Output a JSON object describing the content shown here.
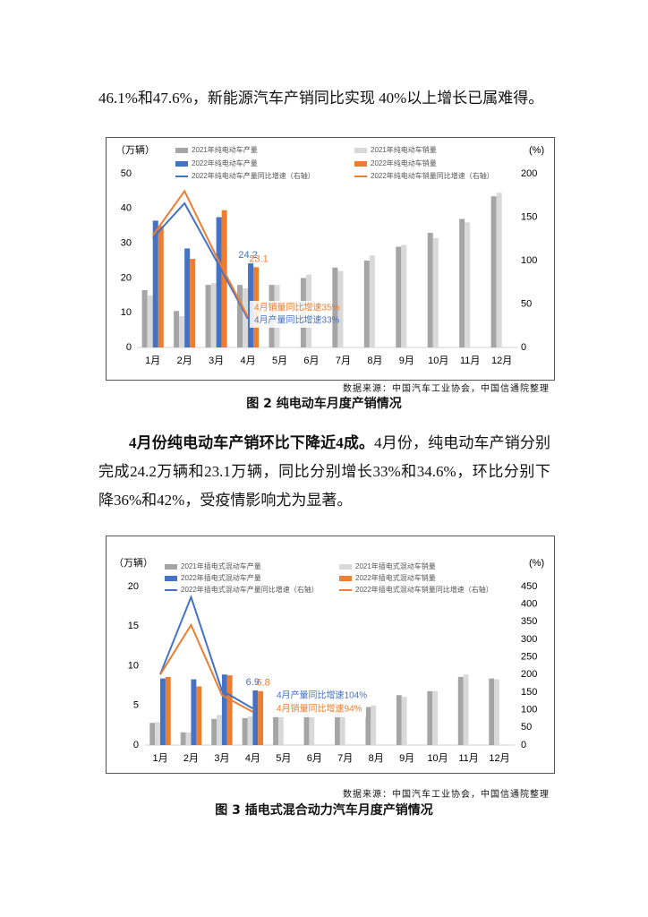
{
  "intro": "46.1%和47.6%，新能源汽车产销同比实现 40%以上增长已属难得。",
  "paragraph": {
    "lead": "4月份纯电动车产销环比下降近4成。",
    "body": "4月份，纯电动车产销分别完成24.2万辆和23.1万辆，同比分别增长33%和34.6%，环比分别下降36%和42%，受疫情影响尤为显著。"
  },
  "chart_data": [
    {
      "type": "bar",
      "y_label": "（万辆）",
      "y2_label": "(%)",
      "categories": [
        "1月",
        "2月",
        "3月",
        "4月",
        "5月",
        "6月",
        "7月",
        "8月",
        "9月",
        "10月",
        "11月",
        "12月"
      ],
      "ylim": [
        0,
        50
      ],
      "yticks": [
        0,
        10,
        20,
        30,
        40,
        50
      ],
      "y2lim": [
        0,
        200
      ],
      "y2ticks": [
        0,
        50,
        100,
        150,
        200
      ],
      "series": [
        {
          "name": "2021年纯电动车产量",
          "type": "bar",
          "color": "#a5a5a5",
          "values": [
            16.5,
            10.5,
            18,
            18,
            18,
            20,
            23,
            25,
            29,
            33,
            37,
            43.5
          ]
        },
        {
          "name": "2021年纯电动车销量",
          "type": "bar",
          "color": "#d9d9d9",
          "values": [
            15,
            9,
            18.5,
            17,
            18,
            21,
            22,
            26.5,
            29.5,
            31.5,
            36,
            44.5
          ]
        },
        {
          "name": "2022年纯电动车产量",
          "type": "bar",
          "color": "#4472c4",
          "values": [
            36.5,
            28.5,
            37.5,
            24.2,
            null,
            null,
            null,
            null,
            null,
            null,
            null,
            null
          ],
          "value_labels": [
            null,
            null,
            null,
            "24.2",
            null,
            null,
            null,
            null,
            null,
            null,
            null,
            null
          ]
        },
        {
          "name": "2022年纯电动车销量",
          "type": "bar",
          "color": "#ed7d31",
          "values": [
            35,
            25.5,
            39.5,
            23.1,
            null,
            null,
            null,
            null,
            null,
            null,
            null,
            null
          ],
          "value_labels": [
            null,
            null,
            null,
            "23.1",
            null,
            null,
            null,
            null,
            null,
            null,
            null,
            null
          ]
        },
        {
          "name": "2022年纯电动车产量同比增速（右轴）",
          "type": "line",
          "axis": "y2",
          "color": "#4472c4",
          "values": [
            126,
            166,
            100,
            33,
            null,
            null,
            null,
            null,
            null,
            null,
            null,
            null
          ]
        },
        {
          "name": "2022年纯电动车销量同比增速（右轴）",
          "type": "line",
          "axis": "y2",
          "color": "#ed7d31",
          "values": [
            129,
            180,
            105,
            35,
            null,
            null,
            null,
            null,
            null,
            null,
            null,
            null
          ]
        }
      ],
      "annotations": [
        {
          "text": "4月销量同比增速35%",
          "color": "#ed7d31"
        },
        {
          "text": "4月产量同比增速33%",
          "color": "#4472c4"
        }
      ],
      "source": "数据来源：中国汽车工业协会，中国信通院整理",
      "caption": "图 2   纯电动车月度产销情况"
    },
    {
      "type": "bar",
      "y_label": "（万辆）",
      "y2_label": "(%)",
      "categories": [
        "1月",
        "2月",
        "3月",
        "4月",
        "5月",
        "6月",
        "7月",
        "8月",
        "9月",
        "10月",
        "11月",
        "12月"
      ],
      "ylim": [
        0,
        20
      ],
      "yticks": [
        0,
        5,
        10,
        15,
        20
      ],
      "y2lim": [
        0,
        450
      ],
      "y2ticks": [
        0,
        50,
        100,
        150,
        200,
        250,
        300,
        350,
        400,
        450
      ],
      "series": [
        {
          "name": "2021年插电式混动车产量",
          "type": "bar",
          "color": "#a5a5a5",
          "values": [
            2.8,
            1.6,
            3.3,
            3.4,
            3.7,
            4.0,
            4.3,
            4.8,
            6.3,
            6.8,
            8.6,
            8.4
          ]
        },
        {
          "name": "2021年插电式混动车销量",
          "type": "bar",
          "color": "#d9d9d9",
          "values": [
            2.9,
            1.6,
            3.8,
            3.6,
            3.7,
            4.1,
            4.3,
            5.0,
            6.1,
            6.8,
            8.9,
            8.3
          ]
        },
        {
          "name": "2022年插电式混动车产量",
          "type": "bar",
          "color": "#4472c4",
          "values": [
            8.4,
            8.3,
            8.9,
            6.9,
            null,
            null,
            null,
            null,
            null,
            null,
            null,
            null
          ],
          "value_labels": [
            null,
            null,
            null,
            "6.9",
            null,
            null,
            null,
            null,
            null,
            null,
            null,
            null
          ]
        },
        {
          "name": "2022年插电式混动车销量",
          "type": "bar",
          "color": "#ed7d31",
          "values": [
            8.6,
            7.4,
            8.8,
            6.8,
            null,
            null,
            null,
            null,
            null,
            null,
            null,
            null
          ],
          "value_labels": [
            null,
            null,
            null,
            "6.8",
            null,
            null,
            null,
            null,
            null,
            null,
            null,
            null
          ]
        },
        {
          "name": "2022年插电式混动车产量同比增速（右轴）",
          "type": "line",
          "axis": "y2",
          "color": "#4472c4",
          "values": [
            201,
            420,
            155,
            104,
            null,
            null,
            null,
            null,
            null,
            null,
            null,
            null
          ]
        },
        {
          "name": "2022年插电式混动车销量同比增速（右轴）",
          "type": "line",
          "axis": "y2",
          "color": "#ed7d31",
          "values": [
            200,
            341,
            142,
            94,
            null,
            null,
            null,
            null,
            null,
            null,
            null,
            null
          ]
        }
      ],
      "annotations": [
        {
          "text": "4月产量同比增速104%",
          "color": "#4472c4"
        },
        {
          "text": "4月销量同比增速94%",
          "color": "#ed7d31"
        }
      ],
      "source": "数据来源：中国汽车工业协会，中国信通院整理",
      "caption": "图 3  插电式混合动力汽车月度产销情况"
    }
  ]
}
